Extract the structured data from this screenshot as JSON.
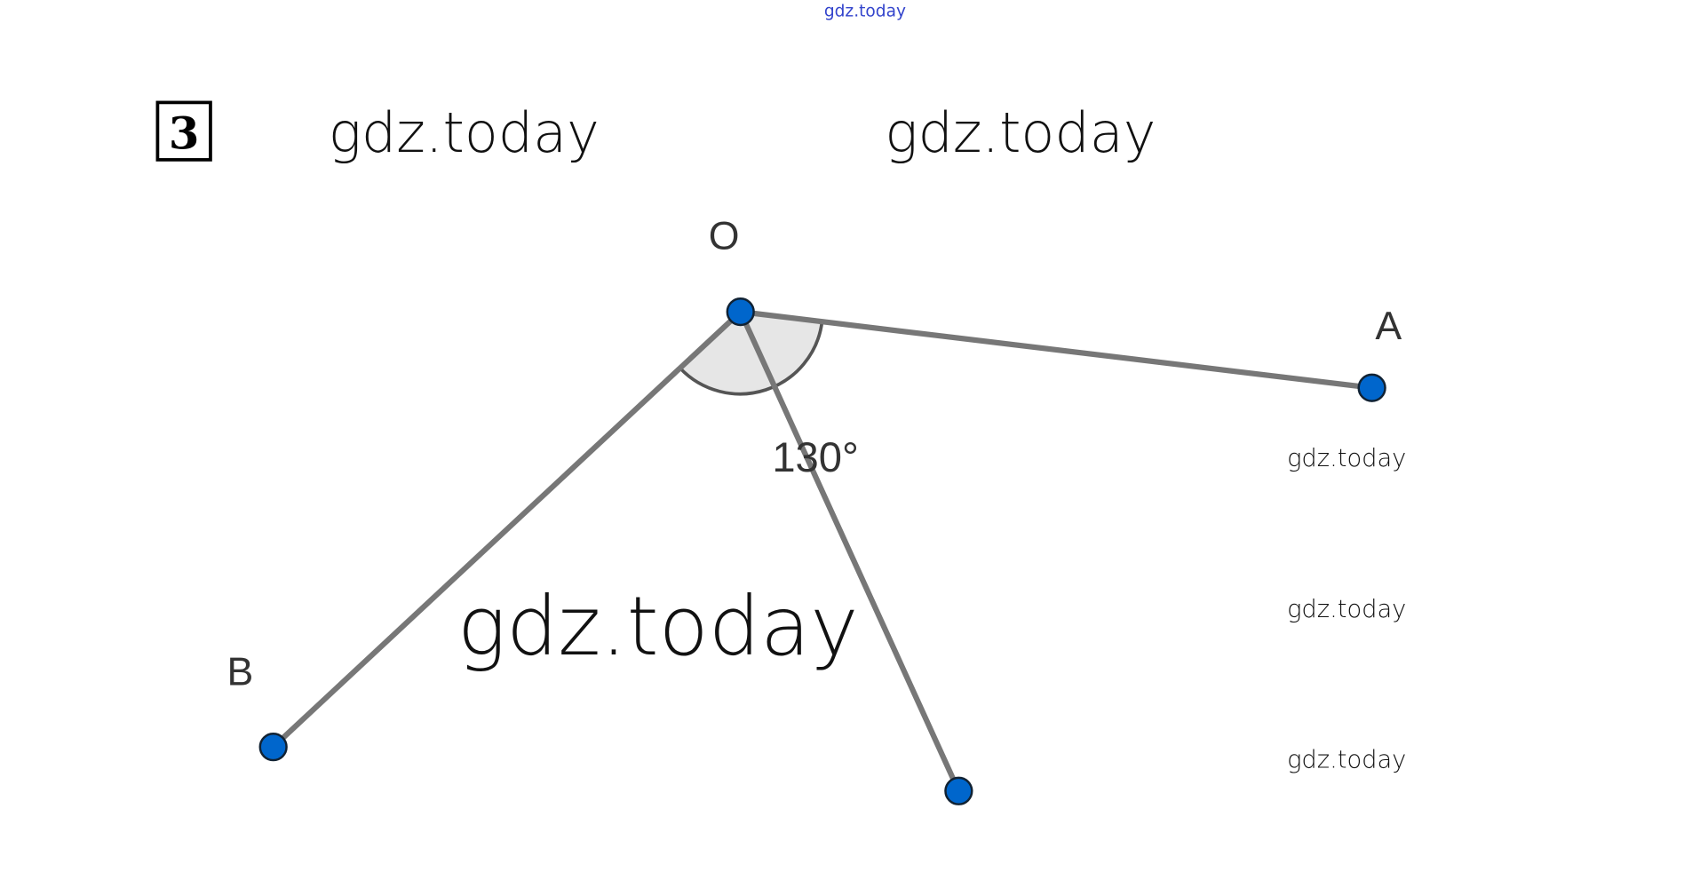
{
  "header": {
    "watermark_top": "gdz.today",
    "problem_number": "3"
  },
  "watermarks": [
    "gdz.today",
    "gdz.today",
    "gdz.today",
    "gdz.today",
    "gdz.today",
    "gdz.today"
  ],
  "diagram": {
    "points": {
      "O": "O",
      "A": "A",
      "B": "B"
    },
    "angle_label": "130°",
    "colors": {
      "point": "#0066cc",
      "segment": "#777777",
      "angle_fill": "#e6e6e6"
    }
  }
}
